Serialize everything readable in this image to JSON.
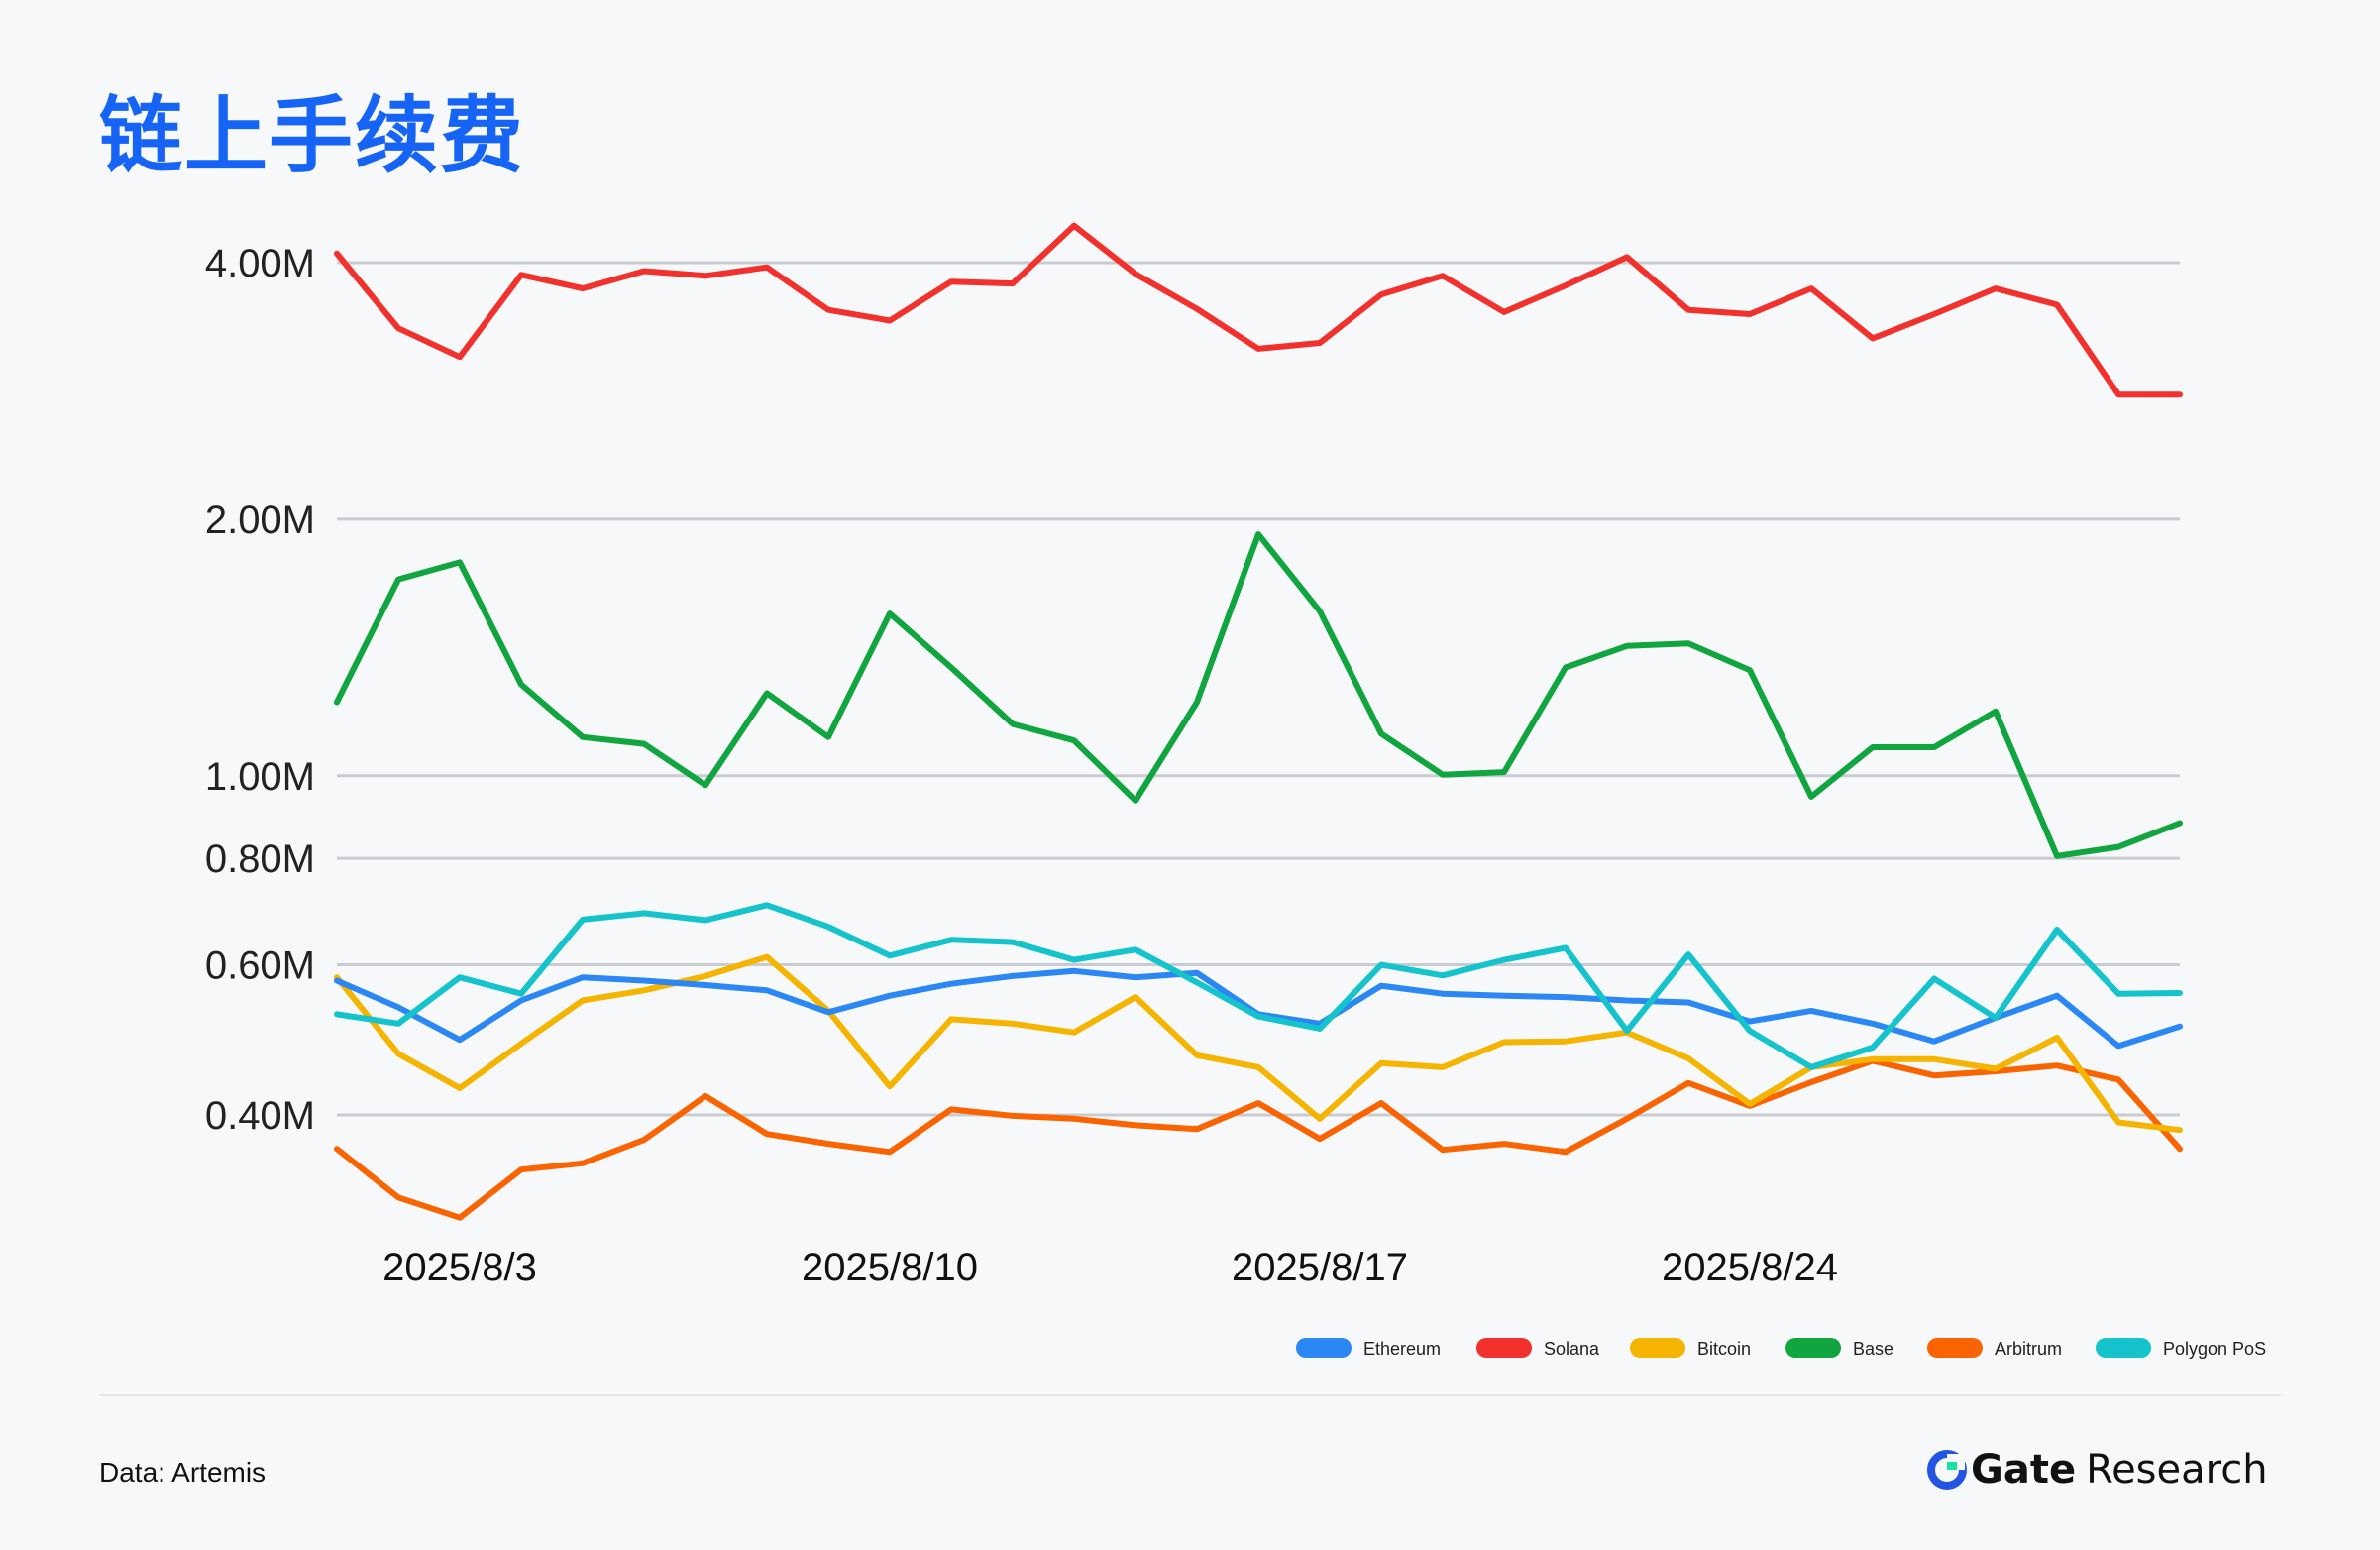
{
  "title": "链上手续费",
  "source": "Data: Artemis",
  "brand": {
    "main": "Gate",
    "sub": "Research"
  },
  "colors": {
    "background": "#f7f8fa",
    "title": "#1664f5",
    "Ethereum": "#2b87f3",
    "Solana": "#f2312d",
    "Bitcoin": "#f5b400",
    "Base": "#11a53f",
    "Arbitrum": "#fa6400",
    "Polygon PoS": "#14c3cc"
  },
  "chart_data": {
    "type": "line",
    "y_scale": "log",
    "ylim": [
      300000,
      4400000
    ],
    "y_ticks": [
      {
        "value": 400000,
        "label": "0.40M"
      },
      {
        "value": 600000,
        "label": "0.60M"
      },
      {
        "value": 800000,
        "label": "0.80M"
      },
      {
        "value": 1000000,
        "label": "1.00M"
      },
      {
        "value": 2000000,
        "label": "2.00M"
      },
      {
        "value": 4000000,
        "label": "4.00M"
      }
    ],
    "x_ticks": [
      {
        "date": "2025-08-03",
        "label": "2025/8/3"
      },
      {
        "date": "2025-08-10",
        "label": "2025/8/10"
      },
      {
        "date": "2025-08-17",
        "label": "2025/8/17"
      },
      {
        "date": "2025-08-24",
        "label": "2025/8/24"
      }
    ],
    "x": [
      "2025-08-01",
      "2025-08-02",
      "2025-08-03",
      "2025-08-04",
      "2025-08-05",
      "2025-08-06",
      "2025-08-07",
      "2025-08-08",
      "2025-08-09",
      "2025-08-10",
      "2025-08-11",
      "2025-08-12",
      "2025-08-13",
      "2025-08-14",
      "2025-08-15",
      "2025-08-16",
      "2025-08-17",
      "2025-08-18",
      "2025-08-19",
      "2025-08-20",
      "2025-08-21",
      "2025-08-22",
      "2025-08-23",
      "2025-08-24",
      "2025-08-25",
      "2025-08-26",
      "2025-08-27",
      "2025-08-28",
      "2025-08-29",
      "2025-08-30",
      "2025-08-31"
    ],
    "grid": true,
    "legend_position": "bottom-right",
    "series": [
      {
        "name": "Ethereum",
        "values": [
          575000,
          535000,
          490000,
          545000,
          580000,
          575000,
          568000,
          560000,
          528000,
          552000,
          570000,
          582000,
          590000,
          580000,
          587000,
          525000,
          512000,
          567000,
          555000,
          552000,
          550000,
          545000,
          542000,
          515000,
          530000,
          512000,
          488000,
          520000,
          552000,
          482000,
          508000
        ]
      },
      {
        "name": "Solana",
        "values": [
          4100000,
          3350000,
          3100000,
          3870000,
          3730000,
          3910000,
          3860000,
          3950000,
          3520000,
          3420000,
          3800000,
          3780000,
          4420000,
          3880000,
          3530000,
          3170000,
          3220000,
          3670000,
          3860000,
          3500000,
          3760000,
          4060000,
          3520000,
          3480000,
          3730000,
          3260000,
          3480000,
          3730000,
          3570000,
          2800000,
          2800000
        ]
      },
      {
        "name": "Bitcoin",
        "values": [
          580000,
          472000,
          430000,
          485000,
          545000,
          560000,
          582000,
          613000,
          530000,
          432000,
          518000,
          512000,
          500000,
          550000,
          470000,
          455000,
          396000,
          460000,
          455000,
          487000,
          488000,
          500000,
          466000,
          412000,
          455000,
          465000,
          465000,
          453000,
          493000,
          392000,
          384000
        ]
      },
      {
        "name": "Base",
        "values": [
          1220000,
          1700000,
          1780000,
          1280000,
          1110000,
          1090000,
          975000,
          1250000,
          1110000,
          1550000,
          1340000,
          1150000,
          1100000,
          935000,
          1220000,
          1920000,
          1560000,
          1120000,
          1003000,
          1010000,
          1340000,
          1420000,
          1430000,
          1330000,
          945000,
          1080000,
          1080000,
          1190000,
          805000,
          825000,
          880000
        ]
      },
      {
        "name": "Arbitrum",
        "values": [
          365000,
          320000,
          303000,
          345000,
          351000,
          374000,
          421000,
          380000,
          370000,
          362000,
          406000,
          399000,
          396000,
          389000,
          385000,
          413000,
          375000,
          413000,
          364000,
          370000,
          362000,
          396000,
          436000,
          410000,
          437000,
          463000,
          445000,
          450000,
          457000,
          440000,
          365000
        ]
      },
      {
        "name": "Polygon PoS",
        "values": [
          525000,
          512000,
          580000,
          555000,
          678000,
          690000,
          677000,
          705000,
          665000,
          615000,
          642000,
          638000,
          608000,
          625000,
          572000,
          522000,
          505000,
          600000,
          583000,
          608000,
          628000,
          502000,
          617000,
          502000,
          455000,
          480000,
          578000,
          520000,
          660000,
          555000,
          556000
        ]
      }
    ]
  }
}
